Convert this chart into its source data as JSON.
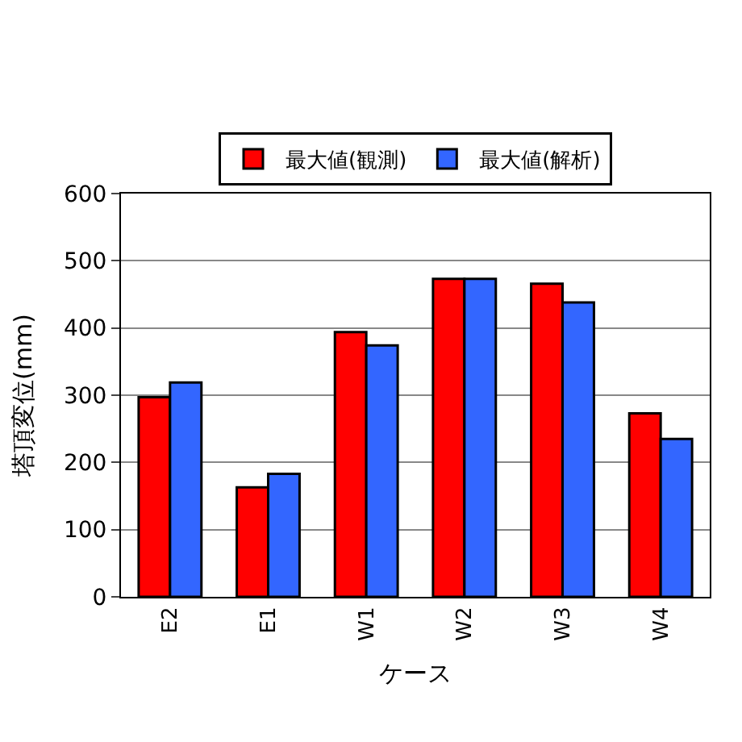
{
  "chart_data": {
    "type": "bar",
    "xlabel": "ケース",
    "ylabel": "塔頂変位(mm)",
    "categories": [
      "E2",
      "E1",
      "W1",
      "W2",
      "W3",
      "W4"
    ],
    "series": [
      {
        "name": "最大値(観測)",
        "color": "#ff0000",
        "values": [
          297,
          163,
          394,
          473,
          466,
          273
        ]
      },
      {
        "name": "最大値(解析)",
        "color": "#3366ff",
        "values": [
          319,
          183,
          374,
          473,
          438,
          235
        ]
      }
    ],
    "ylim": [
      0,
      600
    ],
    "yticks": [
      0,
      100,
      200,
      300,
      400,
      500,
      600
    ],
    "grid": "y",
    "legend": "top"
  }
}
